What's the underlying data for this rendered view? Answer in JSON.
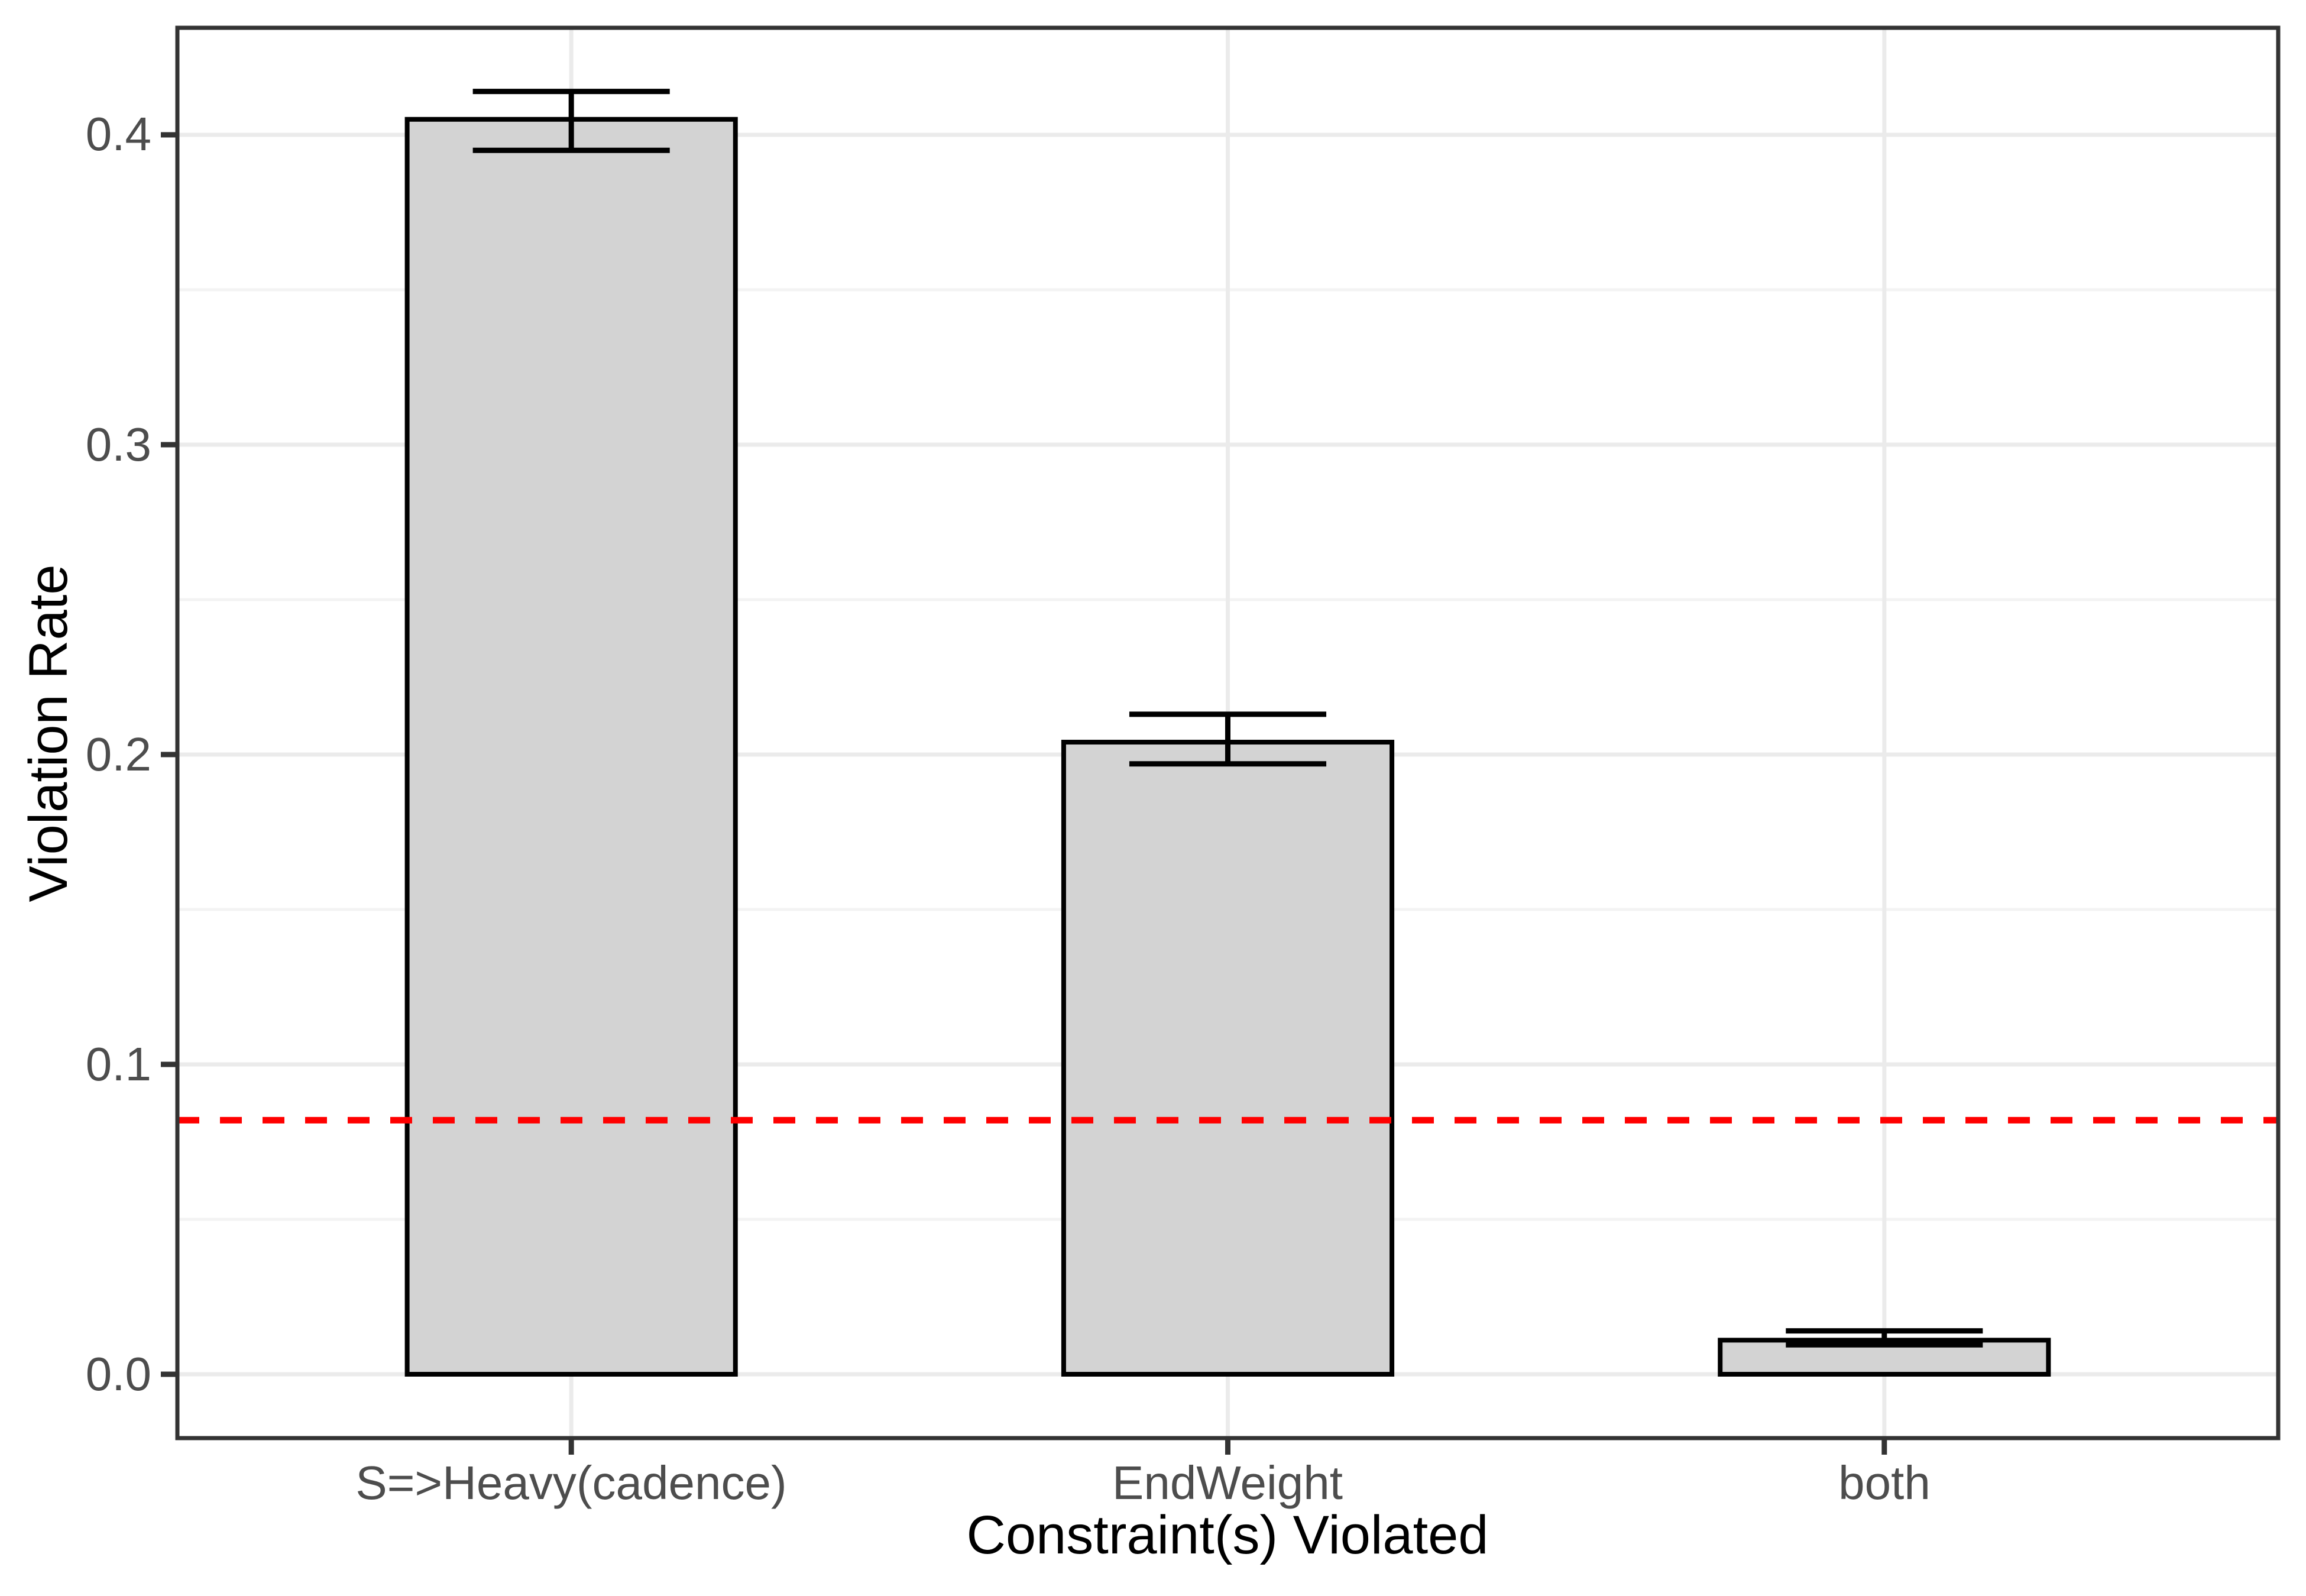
{
  "chart_data": {
    "type": "bar",
    "title": "",
    "categories": [
      "S=>Heavy(cadence)",
      "EndWeight",
      "both"
    ],
    "values": [
      0.405,
      0.204,
      0.011
    ],
    "error_low": [
      0.395,
      0.197,
      0.0095
    ],
    "error_high": [
      0.414,
      0.213,
      0.014
    ],
    "reference_line": {
      "value": 0.082,
      "style": "dashed",
      "color": "#FF0000"
    },
    "xlabel": "Constraint(s) Violated",
    "ylabel": "Violation Rate",
    "ylim": [
      -0.0206,
      0.4346
    ],
    "yticks": [
      0.0,
      0.1,
      0.2,
      0.3,
      0.4
    ],
    "ytick_labels": [
      "0.0",
      "0.1",
      "0.2",
      "0.3",
      "0.4"
    ],
    "minor_yticks": [
      0.05,
      0.15,
      0.25,
      0.35
    ],
    "grid": true,
    "legend": false,
    "style": {
      "bar_fill": "#D3D3D3",
      "bar_stroke": "#000000",
      "error_stroke": "#000000",
      "grid_major": "#EBEBEB",
      "grid_minor": "#F3F3F3",
      "panel_border": "#333333",
      "tick_mark": "#333333",
      "axis_text": "#4D4D4D",
      "axis_title": "#000000",
      "background": "#FFFFFF"
    }
  }
}
